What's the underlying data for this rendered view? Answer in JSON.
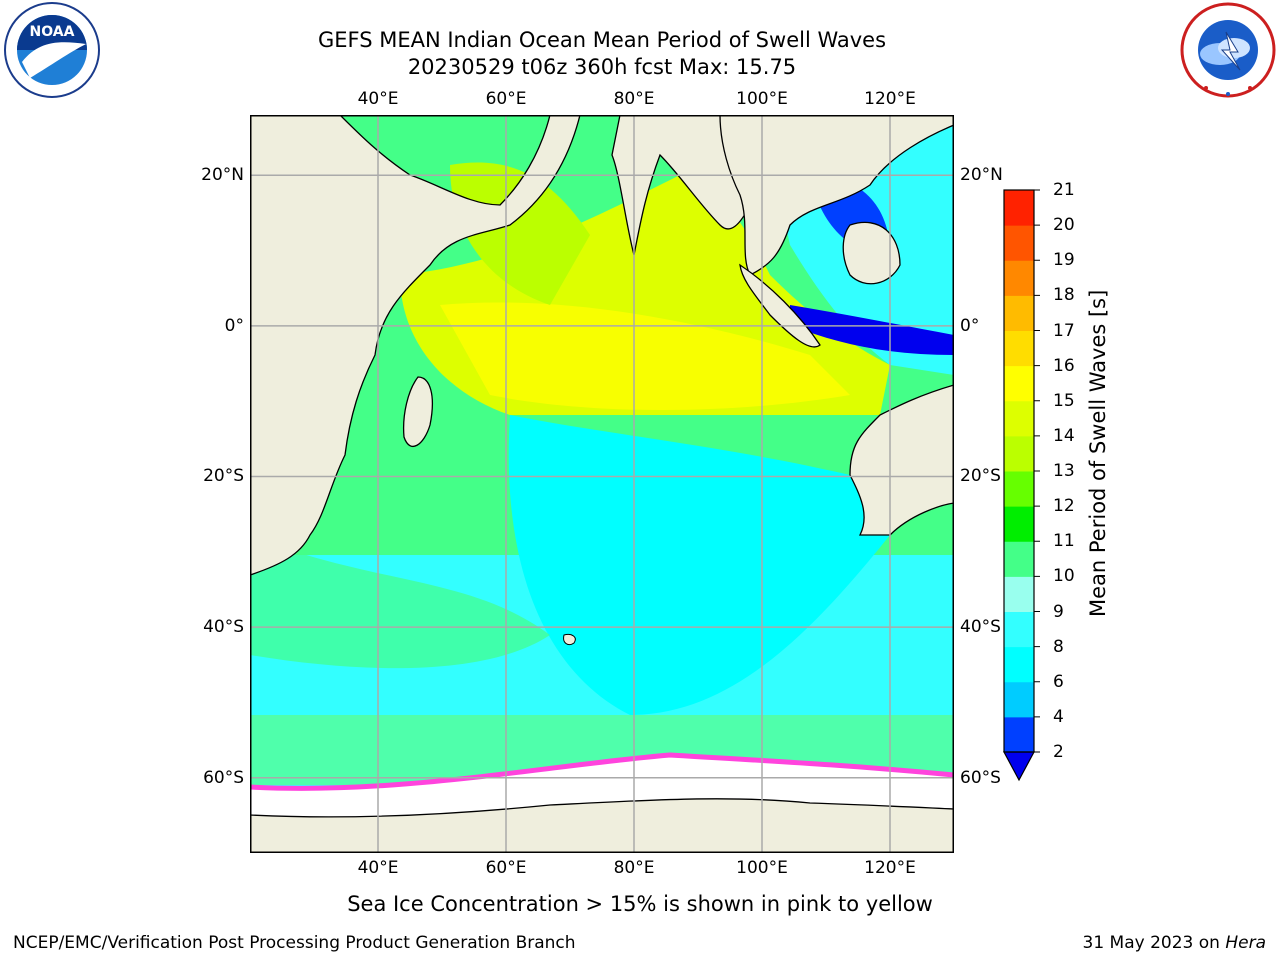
{
  "title": {
    "line1": "GEFS MEAN Indian Ocean Mean Period of Swell Waves",
    "line2": "20230529 t06z 360h fcst   Max: 15.75"
  },
  "logos": {
    "left": {
      "icon": "noaa-logo",
      "text": "NOAA",
      "ring": "NATIONAL OCEANIC AND ATMOSPHERIC ADMINISTRATION · U.S. DEPARTMENT OF COMMERCE"
    },
    "right": {
      "icon": "nws-logo",
      "ring": "NATIONAL WEATHER SERVICE"
    }
  },
  "map": {
    "lon_range": [
      20,
      130
    ],
    "lat_range": [
      -70,
      28
    ],
    "lon_ticks": [
      {
        "value": 40,
        "label": "40°E"
      },
      {
        "value": 60,
        "label": "60°E"
      },
      {
        "value": 80,
        "label": "80°E"
      },
      {
        "value": 100,
        "label": "100°E"
      },
      {
        "value": 120,
        "label": "120°E"
      }
    ],
    "lat_ticks_left": [
      {
        "value": 20,
        "label": "20°N"
      },
      {
        "value": 0,
        "label": "0°"
      },
      {
        "value": -20,
        "label": "20°S"
      },
      {
        "value": -40,
        "label": "40°S"
      },
      {
        "value": -60,
        "label": "60°S"
      }
    ],
    "lat_ticks_right": [
      {
        "value": 20,
        "label": "20°N"
      },
      {
        "value": 0,
        "label": "0°"
      },
      {
        "value": -20,
        "label": "20°S"
      },
      {
        "value": -40,
        "label": "40°S"
      },
      {
        "value": -60,
        "label": "60°S"
      }
    ],
    "grid": true,
    "land_color": "#efeedd",
    "ice_color": "#ffffff"
  },
  "colorbar": {
    "title": "Mean Period of Swell Waves [s]",
    "labels": [
      "2",
      "4",
      "6",
      "8",
      "9",
      "10",
      "11",
      "12",
      "13",
      "14",
      "15",
      "16",
      "17",
      "18",
      "19",
      "20",
      "21"
    ],
    "colors": [
      "#0040ff",
      "#00ccff",
      "#00ffff",
      "#33ffff",
      "#99ffee",
      "#44ff88",
      "#00ee00",
      "#66ff00",
      "#bbff00",
      "#ddff00",
      "#ffff00",
      "#ffdd00",
      "#ffbb00",
      "#ff8800",
      "#ff5500",
      "#ff2200"
    ],
    "extend_color": "#0000ee"
  },
  "note": "Sea Ice Concentration > 15% is shown in pink to yellow",
  "footer": {
    "left": "NCEP/EMC/Verification Post Processing Product Generation Branch",
    "right_prefix": "31 May 2023 on ",
    "right_italic": "Hera"
  }
}
